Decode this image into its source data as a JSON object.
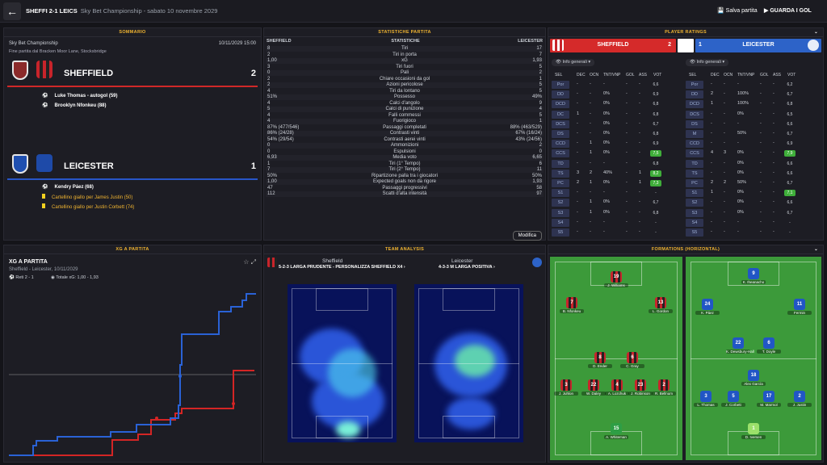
{
  "topbar": {
    "title": "SHEFFI 2-1 LEICS",
    "subtitle": "Sky Bet Championship - sabato 10 novembre 2029",
    "save": "Salva partita",
    "watch": "GUARDA I GOL"
  },
  "summary": {
    "header": "SOMMARIO",
    "competition": "Sky Bet Championship",
    "date": "10/11/2029 15:00",
    "venue": "Fine partita dal Bracken Moor Lane, Stocksbridge",
    "home": {
      "name": "SHEFFIELD",
      "score": "2",
      "events": [
        "Luke Thomas - autogol (59)",
        "Brooklyn Nfonkeu (88)"
      ]
    },
    "away": {
      "name": "LEICESTER",
      "score": "1",
      "events": [
        "Kendry Páez (68)",
        "Cartellino giallo per James Justin (50)",
        "Cartellino giallo per Justin Corbett (74)"
      ]
    }
  },
  "stats": {
    "header": "STATISTICHE PARTITA",
    "col_home": "SHEFFIELD",
    "col_mid": "STATISTICHE",
    "col_away": "LEICESTER",
    "modifica": "Modifica",
    "rows": [
      [
        "8",
        "Tiri",
        "17"
      ],
      [
        "2",
        "Tiri in porta",
        "7"
      ],
      [
        "1,00",
        "xG",
        "1,93"
      ],
      [
        "3",
        "Tiri fuori",
        "5"
      ],
      [
        "0",
        "Pali",
        "2"
      ],
      [
        "2",
        "Chiare occasioni da gol",
        "1"
      ],
      [
        "2",
        "Azioni pericolose",
        "5"
      ],
      [
        "4",
        "Tiri da lontano",
        "5"
      ],
      [
        "51%",
        "Possesso",
        "49%"
      ],
      [
        "4",
        "Calci d'angolo",
        "9"
      ],
      [
        "5",
        "Calci di punizione",
        "4"
      ],
      [
        "4",
        "Falli commessi",
        "5"
      ],
      [
        "4",
        "Fuorigioco",
        "1"
      ],
      [
        "87% (477/546)",
        "Passaggi completati",
        "88% (463/529)"
      ],
      [
        "86% (24/28)",
        "Contrasti vinti",
        "67% (16/24)"
      ],
      [
        "54% (29/54)",
        "Contrasti aerei vinti",
        "43% (24/56)"
      ],
      [
        "0",
        "Ammonizioni",
        "2"
      ],
      [
        "0",
        "Espulsioni",
        "0"
      ],
      [
        "6,93",
        "Media voto",
        "6,65"
      ],
      [
        "1",
        "Tiri (1° Tempo)",
        "6"
      ],
      [
        "7",
        "Tiri (2° Tempo)",
        "11"
      ],
      [
        "50%",
        "Ripartizione palla tra i giocatori",
        "50%"
      ],
      [
        "1,00",
        "Expected goals non da rigore",
        "1,93"
      ],
      [
        "47",
        "Passaggi progressivi",
        "58"
      ],
      [
        "112",
        "Scatti d'alta intensità",
        "97"
      ]
    ]
  },
  "ratings": {
    "header": "PLAYER RATINGS",
    "home": "SHEFFIELD",
    "home_score": "2",
    "away": "LEICESTER",
    "away_score": "1",
    "filter": "Info generali",
    "cols": [
      "SEL",
      "DEC",
      "OCN",
      "TNT/VNP",
      "GOL",
      "ASS",
      "VOT"
    ],
    "home_rows": [
      [
        "Por",
        "-",
        "-",
        "-",
        "-",
        "-",
        "6,6"
      ],
      [
        "DD",
        "-",
        "-",
        "0%",
        "-",
        "-",
        "6,9"
      ],
      [
        "DCD",
        "-",
        "-",
        "0%",
        "-",
        "-",
        "6,8"
      ],
      [
        "DC",
        "1",
        "-",
        "0%",
        "-",
        "-",
        "6,8"
      ],
      [
        "DCS",
        "-",
        "-",
        "0%",
        "-",
        "-",
        "6,7"
      ],
      [
        "DS",
        "-",
        "-",
        "0%",
        "-",
        "-",
        "6,8"
      ],
      [
        "CCD",
        "-",
        "1",
        "0%",
        "-",
        "-",
        "6,9"
      ],
      [
        "CCS",
        "-",
        "1",
        "0%",
        "-",
        "-",
        "7,5"
      ],
      [
        "TD",
        "-",
        "-",
        "-",
        "-",
        "-",
        "6,8"
      ],
      [
        "TS",
        "3",
        "2",
        "40%",
        "-",
        "1",
        "8,2"
      ],
      [
        "PC",
        "2",
        "1",
        "0%",
        "-",
        "1",
        "7,3"
      ],
      [
        "S1",
        "-",
        "-",
        "-",
        "-",
        "-",
        "-"
      ],
      [
        "S2",
        "-",
        "1",
        "0%",
        "-",
        "-",
        "6,7"
      ],
      [
        "S3",
        "-",
        "1",
        "0%",
        "-",
        "-",
        "6,8"
      ],
      [
        "S4",
        "-",
        "-",
        "-",
        "-",
        "-",
        "-"
      ],
      [
        "S5",
        "-",
        "-",
        "-",
        "-",
        "-",
        "-"
      ]
    ],
    "away_rows": [
      [
        "Por",
        "-",
        "-",
        "-",
        "-",
        "-",
        "6,2"
      ],
      [
        "DD",
        "2",
        "-",
        "100%",
        "-",
        "-",
        "6,7"
      ],
      [
        "DCD",
        "1",
        "-",
        "100%",
        "-",
        "-",
        "6,8"
      ],
      [
        "DCS",
        "-",
        "-",
        "0%",
        "-",
        "-",
        "6,5"
      ],
      [
        "DS",
        "-",
        "-",
        "-",
        "-",
        "-",
        "6,6"
      ],
      [
        "M",
        "-",
        "-",
        "50%",
        "-",
        "-",
        "6,7"
      ],
      [
        "CCD",
        "-",
        "-",
        "-",
        "-",
        "-",
        "6,9"
      ],
      [
        "CCS",
        "4",
        "3",
        "0%",
        "-",
        "-",
        "7,9"
      ],
      [
        "TD",
        "-",
        "-",
        "0%",
        "-",
        "-",
        "6,6"
      ],
      [
        "TS",
        "-",
        "-",
        "0%",
        "-",
        "-",
        "6,6"
      ],
      [
        "PC",
        "2",
        "2",
        "50%",
        "-",
        "-",
        "6,7"
      ],
      [
        "S1",
        "1",
        "-",
        "0%",
        "-",
        "-",
        "7,1"
      ],
      [
        "S2",
        "-",
        "-",
        "0%",
        "-",
        "-",
        "6,6"
      ],
      [
        "S3",
        "-",
        "-",
        "0%",
        "-",
        "-",
        "6,7"
      ],
      [
        "S4",
        "-",
        "-",
        "-",
        "-",
        "-",
        "-"
      ],
      [
        "S5",
        "-",
        "-",
        "-",
        "-",
        "-",
        "-"
      ]
    ]
  },
  "xg": {
    "header": "XG A PARTITA",
    "title": "XG A PARTITA",
    "sub": "Sheffield - Leicester, 10/11/2029",
    "goals": "Reti 2 - 1",
    "total": "Totale xG: 1,00 - 1,93"
  },
  "team": {
    "header": "TEAM ANALYSIS",
    "home": "Sheffield",
    "away": "Leicester",
    "home_form": "5-2-3 LARGA PRUDENTE - PERSONALIZZA SHEFFIELD X4",
    "away_form": "4-3-3 M LARGA POSITIVA"
  },
  "formations": {
    "header": "FORMATIONS (HORIZONTAL)",
    "home": [
      [
        "19",
        "J. Williams"
      ],
      [
        "7",
        "B. Nfonkeu"
      ],
      [
        "13",
        "L. Gordon"
      ],
      [
        "8",
        "D. Ender"
      ],
      [
        "6",
        "C. Gray"
      ],
      [
        "3",
        "J. Juhlon"
      ],
      [
        "22",
        "W. Daley"
      ],
      [
        "4",
        "A. Lozchuk"
      ],
      [
        "23",
        "J. Robinson"
      ],
      [
        "2",
        "R. Bellnum"
      ],
      [
        "15",
        "A. Whiteman"
      ]
    ],
    "away": [
      [
        "9",
        "K. Iheanacho"
      ],
      [
        "24",
        "K. Páez"
      ],
      [
        "11",
        "Fermin"
      ],
      [
        "22",
        "K. Dewsbury-Hall"
      ],
      [
        "6",
        "T. Doyle"
      ],
      [
        "18",
        "Alex García"
      ],
      [
        "3",
        "L. Thomas"
      ],
      [
        "5",
        "J. Corbett"
      ],
      [
        "17",
        "M. Marmol"
      ],
      [
        "2",
        "J. Justin"
      ],
      [
        "1",
        "D. Iversen"
      ]
    ]
  }
}
